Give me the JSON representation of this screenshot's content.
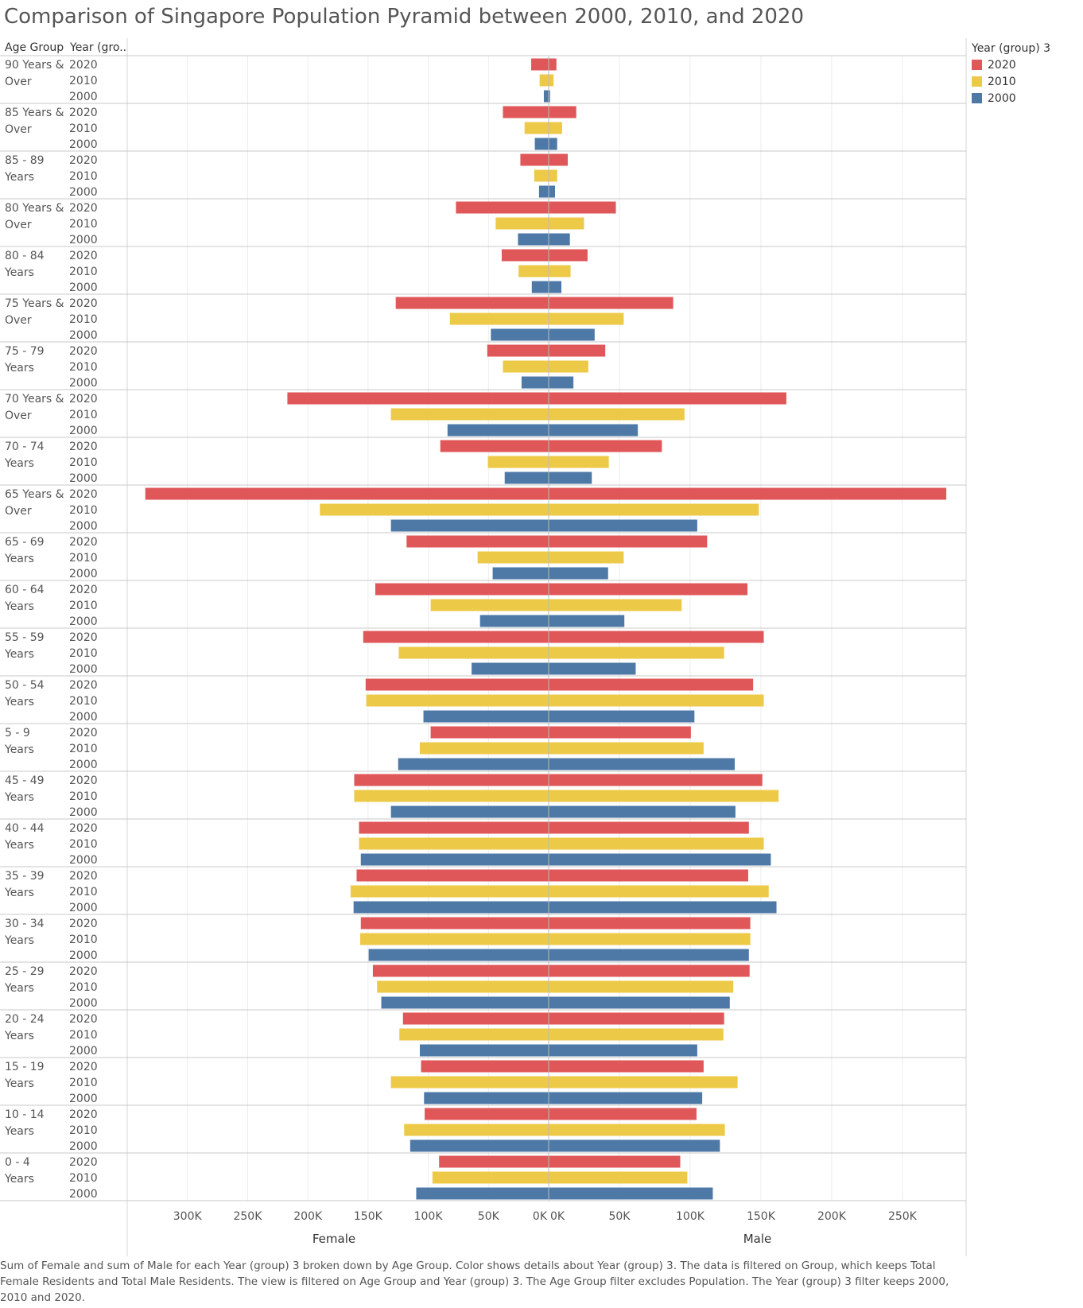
{
  "title": "Comparison of Singapore Population Pyramid between 2000, 2010, and 2020",
  "header": {
    "age_group": "Age Group",
    "year": "Year (gro.."
  },
  "legend": {
    "title": "Year (group) 3",
    "items": [
      {
        "label": "2020",
        "color": "#e05759"
      },
      {
        "label": "2010",
        "color": "#edc948"
      },
      {
        "label": "2000",
        "color": "#4e79a7"
      }
    ]
  },
  "caption": "Sum of Female and sum of Male for each Year (group) 3 broken down by Age Group.  Color shows details about Year (group) 3. The data is filtered on Group, which keeps Total Female Residents and Total Male Residents. The view is filtered on Age Group and Year (group) 3. The Age Group filter excludes Population. The Year (group) 3 filter keeps 2000, 2010 and 2020.",
  "chart_data": {
    "type": "bar",
    "orientation": "horizontal-diverging",
    "panes": [
      {
        "label": "Female",
        "ticks": [
          "300K",
          "250K",
          "200K",
          "150K",
          "100K",
          "50K",
          "0K"
        ],
        "xlim": [
          0,
          350000
        ]
      },
      {
        "label": "Male",
        "ticks": [
          "0K",
          "50K",
          "100K",
          "150K",
          "200K",
          "250K"
        ],
        "xlim": [
          0,
          295000
        ]
      }
    ],
    "years": [
      "2020",
      "2010",
      "2000"
    ],
    "series_colors": {
      "2020": "#e05759",
      "2010": "#edc948",
      "2000": "#4e79a7"
    },
    "groups": [
      {
        "label": [
          "90 Years &",
          "Over"
        ],
        "female": [
          14500,
          7500,
          4000
        ],
        "male": [
          5500,
          3500,
          1000
        ]
      },
      {
        "label": [
          "85 Years &",
          "Over"
        ],
        "female": [
          38000,
          20000,
          11500
        ],
        "male": [
          19500,
          9500,
          6000
        ]
      },
      {
        "label": [
          "85 - 89",
          "Years"
        ],
        "female": [
          23500,
          12000,
          8000
        ],
        "male": [
          13500,
          6000,
          4500
        ]
      },
      {
        "label": [
          "80 Years &",
          "Over"
        ],
        "female": [
          77000,
          44000,
          25500
        ],
        "male": [
          47500,
          25000,
          15000
        ]
      },
      {
        "label": [
          "80 - 84",
          "Years"
        ],
        "female": [
          39000,
          25000,
          14000
        ],
        "male": [
          27500,
          15500,
          9000
        ]
      },
      {
        "label": [
          "75 Years &",
          "Over"
        ],
        "female": [
          127000,
          82000,
          48000
        ],
        "male": [
          88000,
          53000,
          32500
        ]
      },
      {
        "label": [
          "75 - 79",
          "Years"
        ],
        "female": [
          51000,
          38000,
          22500
        ],
        "male": [
          40000,
          28000,
          17500
        ]
      },
      {
        "label": [
          "70 Years &",
          "Over"
        ],
        "female": [
          217000,
          131000,
          84000
        ],
        "male": [
          168000,
          96000,
          63000
        ]
      },
      {
        "label": [
          "70 - 74",
          "Years"
        ],
        "female": [
          90000,
          50500,
          36500
        ],
        "male": [
          80000,
          42500,
          30500
        ]
      },
      {
        "label": [
          "65 Years &",
          "Over"
        ],
        "female": [
          335000,
          190000,
          131000
        ],
        "male": [
          281000,
          148500,
          105000
        ]
      },
      {
        "label": [
          "65 - 69",
          "Years"
        ],
        "female": [
          118000,
          59000,
          46500
        ],
        "male": [
          112000,
          53000,
          42000
        ]
      },
      {
        "label": [
          "60 - 64",
          "Years"
        ],
        "female": [
          144000,
          98000,
          57000
        ],
        "male": [
          140500,
          94000,
          53500
        ]
      },
      {
        "label": [
          "55 - 59",
          "Years"
        ],
        "female": [
          154000,
          124500,
          64000
        ],
        "male": [
          152000,
          124000,
          61500
        ]
      },
      {
        "label": [
          "50 - 54",
          "Years"
        ],
        "female": [
          152000,
          151500,
          104000
        ],
        "male": [
          144500,
          152000,
          103000
        ]
      },
      {
        "label": [
          "5  -  9",
          "Years"
        ],
        "female": [
          98000,
          107000,
          125000
        ],
        "male": [
          100500,
          109500,
          131500
        ]
      },
      {
        "label": [
          "45 - 49",
          "Years"
        ],
        "female": [
          161500,
          161500,
          131000
        ],
        "male": [
          151000,
          162500,
          132000
        ]
      },
      {
        "label": [
          "40 - 44",
          "Years"
        ],
        "female": [
          157500,
          157500,
          156000
        ],
        "male": [
          141500,
          152000,
          157000
        ]
      },
      {
        "label": [
          "35 - 39",
          "Years"
        ],
        "female": [
          159500,
          164500,
          162000
        ],
        "male": [
          141000,
          155500,
          161000
        ]
      },
      {
        "label": [
          "30 - 34",
          "Years"
        ],
        "female": [
          156000,
          156500,
          149500
        ],
        "male": [
          142500,
          142500,
          141500
        ]
      },
      {
        "label": [
          "25 - 29",
          "Years"
        ],
        "female": [
          146000,
          142500,
          139000
        ],
        "male": [
          142000,
          130500,
          128000
        ]
      },
      {
        "label": [
          "20 - 24",
          "Years"
        ],
        "female": [
          121000,
          124000,
          107000
        ],
        "male": [
          124000,
          123500,
          105000
        ]
      },
      {
        "label": [
          "15 - 19",
          "Years"
        ],
        "female": [
          106000,
          131000,
          103500
        ],
        "male": [
          109500,
          133500,
          108500
        ]
      },
      {
        "label": [
          "10 - 14",
          "Years"
        ],
        "female": [
          103000,
          120000,
          115000
        ],
        "male": [
          104500,
          124500,
          121000
        ]
      },
      {
        "label": [
          "0  -  4",
          "Years"
        ],
        "female": [
          91000,
          96500,
          110000
        ],
        "male": [
          93000,
          98000,
          116000
        ]
      }
    ]
  }
}
